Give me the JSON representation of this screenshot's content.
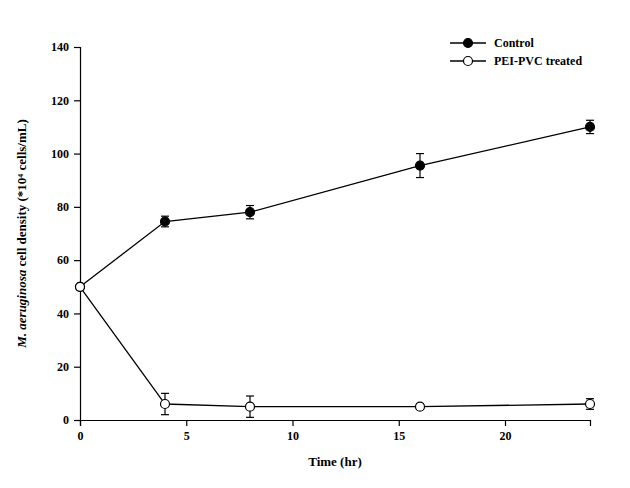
{
  "chart_data": {
    "type": "line",
    "x_label": "Time (hr)",
    "y_label": "M. aeruginosa cell density (*10⁴ cells/mL)",
    "x": [
      0,
      4,
      8,
      16,
      24
    ],
    "series": [
      {
        "name": "Control",
        "color": "#000000",
        "marker": "filled-circle",
        "line_style": "solid",
        "values": [
          50,
          74.5,
          78,
          95.5,
          110
        ],
        "errors": [
          0,
          2,
          2.5,
          4.5,
          2.5
        ]
      },
      {
        "name": "PEI-PVC treated",
        "color": "#000000",
        "marker": "open-circle",
        "line_style": "solid",
        "values": [
          50,
          6,
          5,
          5,
          6
        ],
        "errors": [
          0,
          4,
          4,
          1,
          2
        ]
      }
    ],
    "xlim": [
      0,
      24
    ],
    "xticks": [
      0,
      5,
      10,
      15,
      20
    ],
    "ylim": [
      0,
      140
    ],
    "yticks": [
      0,
      20,
      40,
      60,
      80,
      100,
      120,
      140
    ],
    "grid": false,
    "legend": "upper right"
  }
}
